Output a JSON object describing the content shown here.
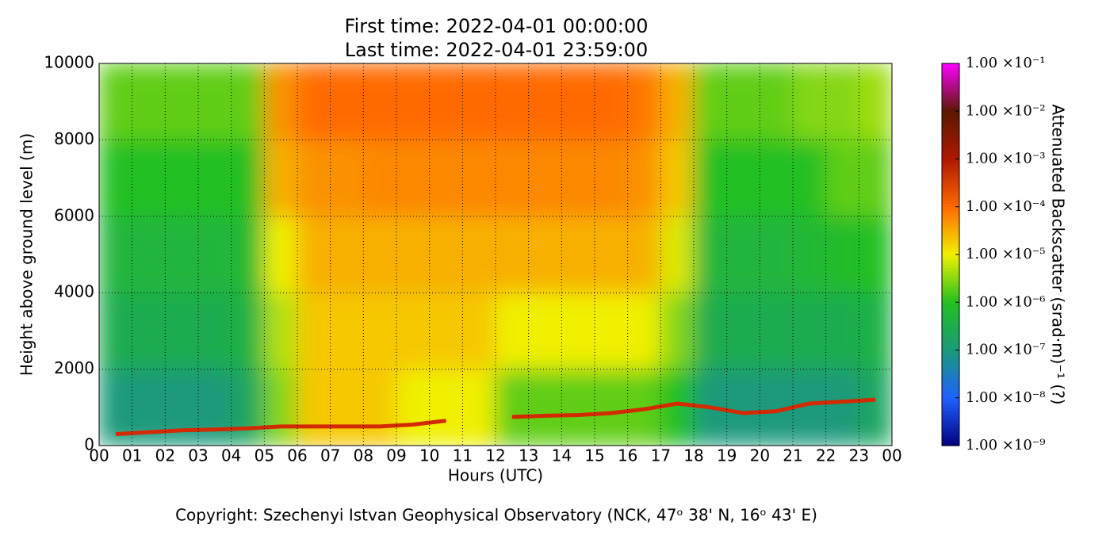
{
  "chart_data": {
    "type": "heatmap",
    "title": [
      "First time: 2022-04-01 00:00:00",
      "Last time: 2022-04-01 23:59:00"
    ],
    "xlabel": "Hours (UTC)",
    "ylabel": "Height above ground level (m)",
    "colorbar_label": "Attenuated Backscatter (srad·m)⁻¹ (?)",
    "footer": "Copyright: Szechenyi Istvan Geophysical Observatory (NCK, 47ᵒ  38' N, 16ᵒ  43' E)",
    "xlim": [
      0,
      24
    ],
    "ylim": [
      0,
      10000
    ],
    "xticks": [
      {
        "value": 0,
        "label": "00"
      },
      {
        "value": 1,
        "label": "01"
      },
      {
        "value": 2,
        "label": "02"
      },
      {
        "value": 3,
        "label": "03"
      },
      {
        "value": 4,
        "label": "04"
      },
      {
        "value": 5,
        "label": "05"
      },
      {
        "value": 6,
        "label": "06"
      },
      {
        "value": 7,
        "label": "07"
      },
      {
        "value": 8,
        "label": "08"
      },
      {
        "value": 9,
        "label": "09"
      },
      10,
      11,
      12,
      13,
      14,
      15,
      16,
      17,
      18,
      19,
      20,
      21,
      22,
      23,
      {
        "value": 24,
        "label": "00"
      }
    ],
    "yticks": [
      0,
      2000,
      4000,
      6000,
      8000,
      10000
    ],
    "x_bins": [
      0,
      1,
      2,
      3,
      4,
      5,
      6,
      7,
      8,
      9,
      10,
      11,
      12,
      13,
      14,
      15,
      16,
      17,
      18,
      19,
      20,
      21,
      22,
      23,
      24
    ],
    "y_bins": [
      0,
      2000,
      4000,
      6000,
      8000,
      10000
    ],
    "values": [
      [
        1e-07,
        1e-07,
        1e-07,
        1e-07,
        2e-07,
        3e-06,
        2e-05,
        2e-05,
        2e-05,
        1e-05,
        1e-05,
        1e-05,
        2e-06,
        2e-06,
        2e-06,
        2e-06,
        2e-06,
        1e-06,
        1e-07,
        1e-07,
        1e-07,
        1e-07,
        1e-07,
        2e-07
      ],
      [
        3e-07,
        3e-07,
        3e-07,
        3e-07,
        4e-07,
        5e-06,
        2e-05,
        2e-05,
        2e-05,
        2e-05,
        2e-05,
        2e-05,
        1e-05,
        1e-05,
        1e-05,
        1e-05,
        1e-05,
        3e-06,
        3e-07,
        3e-07,
        3e-07,
        3e-07,
        3e-07,
        4e-07
      ],
      [
        5e-07,
        5e-07,
        5e-07,
        5e-07,
        6e-07,
        1e-05,
        3e-05,
        3e-05,
        3e-05,
        3e-05,
        3e-05,
        3e-05,
        3e-05,
        3e-05,
        3e-05,
        3e-05,
        3e-05,
        8e-06,
        5e-07,
        5e-07,
        5e-07,
        6e-07,
        8e-07,
        1e-06
      ],
      [
        1e-06,
        1e-06,
        1e-06,
        1e-06,
        1e-06,
        3e-05,
        5e-05,
        5e-05,
        6e-05,
        6e-05,
        6e-05,
        6e-05,
        6e-05,
        6e-05,
        6e-05,
        6e-05,
        5e-05,
        2e-05,
        1e-06,
        1e-06,
        1e-06,
        1e-06,
        2e-06,
        2e-06
      ],
      [
        2e-06,
        2e-06,
        2e-06,
        2e-06,
        2e-06,
        5e-05,
        0.0001,
        0.0001,
        0.0001,
        0.0001,
        0.0001,
        0.0001,
        0.0001,
        0.0001,
        0.0001,
        0.0001,
        8e-05,
        3e-05,
        2e-06,
        2e-06,
        2e-06,
        3e-06,
        3e-06,
        4e-06
      ]
    ],
    "zscale": "log",
    "zlim": [
      1e-09,
      0.1
    ],
    "zticks": [
      {
        "value": 1e-09,
        "label": "1.00 ×10⁻⁹"
      },
      {
        "value": 1e-08,
        "label": "1.00 ×10⁻⁸"
      },
      {
        "value": 1e-07,
        "label": "1.00 ×10⁻⁷"
      },
      {
        "value": 1e-06,
        "label": "1.00 ×10⁻⁶"
      },
      {
        "value": 1e-05,
        "label": "1.00 ×10⁻⁵"
      },
      {
        "value": 0.0001,
        "label": "1.00 ×10⁻⁴"
      },
      {
        "value": 0.001,
        "label": "1.00 ×10⁻³"
      },
      {
        "value": 0.01,
        "label": "1.00 ×10⁻²"
      },
      {
        "value": 0.1,
        "label": "1.00 ×10⁻¹"
      }
    ],
    "colormap": [
      "#00007f",
      "#2060ff",
      "#1a9a7a",
      "#22c022",
      "#f0f000",
      "#ff6a00",
      "#b01800",
      "#5a1800",
      "#ff00ff"
    ],
    "grid": true,
    "line": {
      "color": "#d42a00",
      "x": [
        0.5,
        1.5,
        2.5,
        3.5,
        4.5,
        5.5,
        6.5,
        7.5,
        8.5,
        9.5,
        10.5,
        11.5,
        12.5,
        13.5,
        14.5,
        15.5,
        16.5,
        17.5,
        18.5,
        19.5,
        20.5,
        21.5,
        22.5,
        23.5
      ],
      "values": [
        300,
        350,
        400,
        420,
        450,
        500,
        500,
        500,
        500,
        550,
        650,
        null,
        750,
        780,
        800,
        850,
        950,
        1100,
        1000,
        850,
        900,
        1100,
        1150,
        1200
      ]
    }
  }
}
